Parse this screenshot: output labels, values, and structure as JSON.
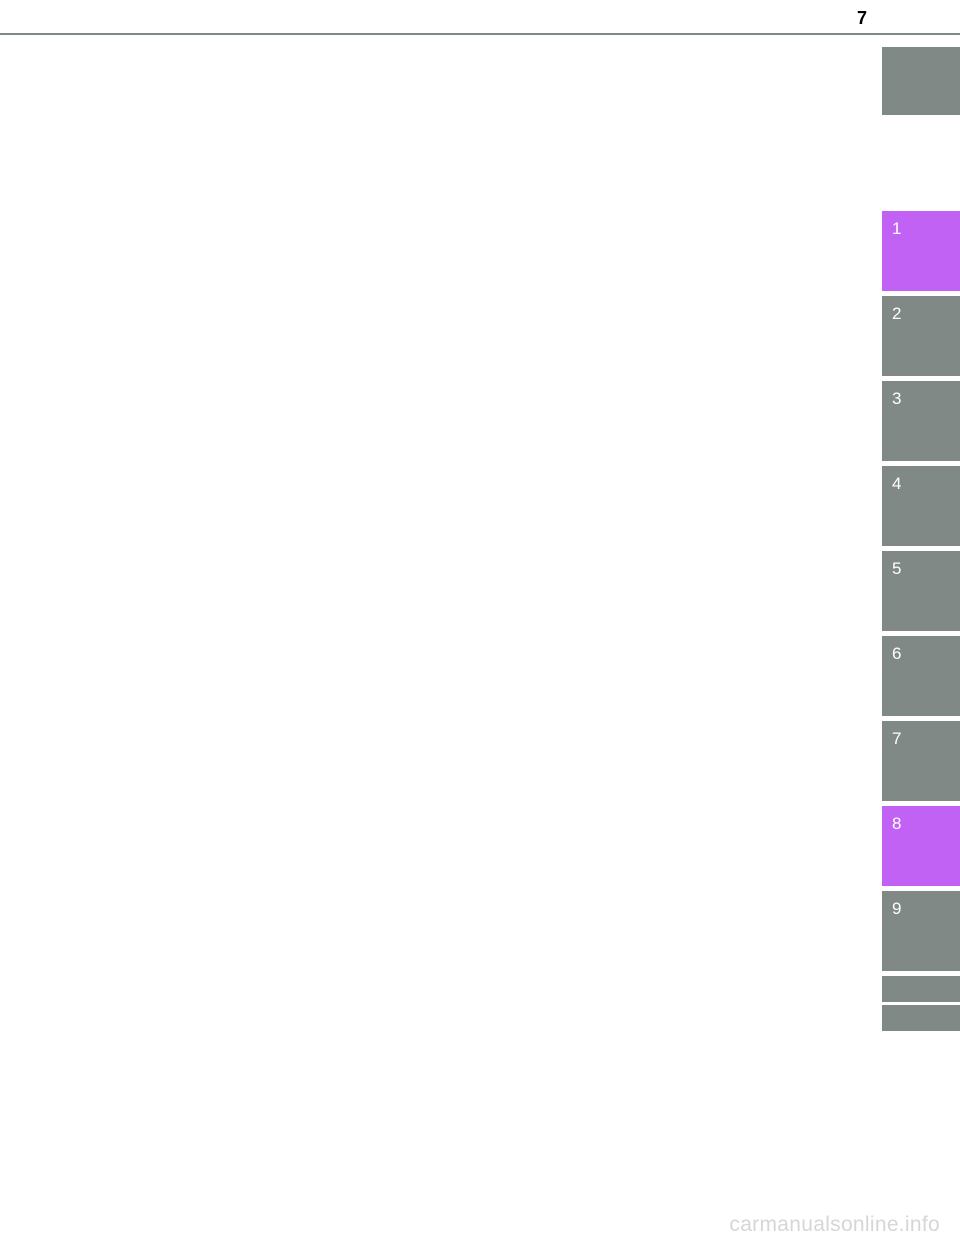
{
  "header": {
    "page_number": "7"
  },
  "sidebar": {
    "top_tab": {
      "background_color": "#818987"
    },
    "tabs": [
      {
        "label": "1",
        "active": true,
        "bg": "#c262f4"
      },
      {
        "label": "2",
        "active": false,
        "bg": "#818987"
      },
      {
        "label": "3",
        "active": false,
        "bg": "#818987"
      },
      {
        "label": "4",
        "active": false,
        "bg": "#818987"
      },
      {
        "label": "5",
        "active": false,
        "bg": "#818987"
      },
      {
        "label": "6",
        "active": false,
        "bg": "#818987"
      },
      {
        "label": "7",
        "active": false,
        "bg": "#818987"
      },
      {
        "label": "8",
        "active": true,
        "bg": "#c262f4"
      },
      {
        "label": "9",
        "active": false,
        "bg": "#818987"
      }
    ],
    "bottom_tabs": [
      {
        "bg": "#818987"
      },
      {
        "bg": "#818987"
      }
    ]
  },
  "watermark": {
    "text": "carmanualsonline.info",
    "color": "#d6d6d6"
  },
  "colors": {
    "divider": "#818987",
    "tab_gray": "#818987",
    "tab_active": "#c262f4",
    "tab_text": "#ffffff",
    "background": "#ffffff"
  }
}
